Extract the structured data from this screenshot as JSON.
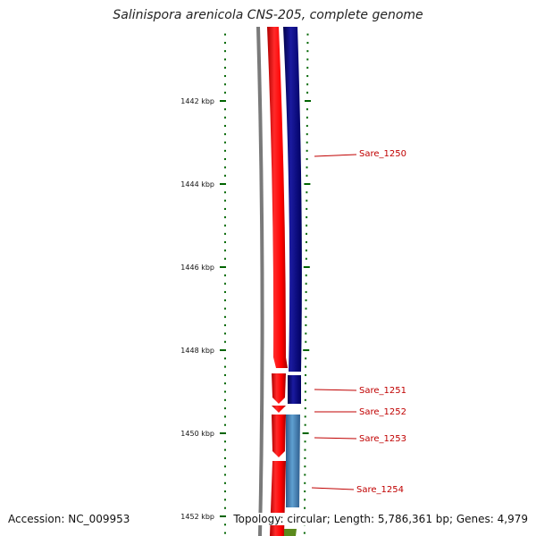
{
  "title": "Salinispora arenicola CNS-205, complete genome",
  "footer": {
    "accession": "Accession: NC_009953",
    "stats": "Topology: circular; Length: 5,786,361 bp; Genes: 4,979"
  },
  "ruler": {
    "labels": [
      {
        "text": "1442 kbp",
        "kbp": 1442
      },
      {
        "text": "1444 kbp",
        "kbp": 1444
      },
      {
        "text": "1446 kbp",
        "kbp": 1446
      },
      {
        "text": "1448 kbp",
        "kbp": 1448
      },
      {
        "text": "1450 kbp",
        "kbp": 1450
      },
      {
        "text": "1452 kbp",
        "kbp": 1452
      }
    ]
  },
  "genes": [
    {
      "name": "Sare_1250"
    },
    {
      "name": "Sare_1251"
    },
    {
      "name": "Sare_1252"
    },
    {
      "name": "Sare_1253"
    },
    {
      "name": "Sare_1254"
    }
  ],
  "colors": {
    "forward_cds": "#ff0000",
    "reverse_cds": "#00008b",
    "reverse_cds_light": "#4682b4",
    "backbone": "#808080",
    "tick": "#006400",
    "gene_label": "#c00000"
  }
}
